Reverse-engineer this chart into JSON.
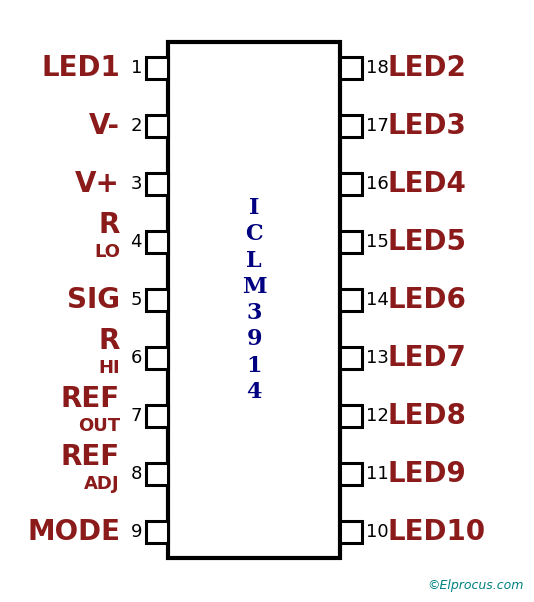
{
  "ic_label": "I\nC\nL\nM\n3\n9\n1\n4",
  "ic_color": "#ffffff",
  "ic_border_color": "#000000",
  "pin_color": "#8b1a1a",
  "num_color": "#000000",
  "bg_color": "#ffffff",
  "watermark": "©Elprocus.com",
  "watermark_color": "#008080",
  "left_pins": [
    {
      "num": "1",
      "main": "LED1",
      "sub": ""
    },
    {
      "num": "2",
      "main": "V-",
      "sub": ""
    },
    {
      "num": "3",
      "main": "V+",
      "sub": ""
    },
    {
      "num": "4",
      "main": "R",
      "sub": "LO"
    },
    {
      "num": "5",
      "main": "SIG",
      "sub": ""
    },
    {
      "num": "6",
      "main": "R",
      "sub": "HI"
    },
    {
      "num": "7",
      "main": "REF",
      "sub": "OUT"
    },
    {
      "num": "8",
      "main": "REF",
      "sub": "ADJ"
    },
    {
      "num": "9",
      "main": "MODE",
      "sub": ""
    }
  ],
  "right_pins": [
    {
      "num": "18",
      "main": "LED2",
      "sub": ""
    },
    {
      "num": "17",
      "main": "LED3",
      "sub": ""
    },
    {
      "num": "16",
      "main": "LED4",
      "sub": ""
    },
    {
      "num": "15",
      "main": "LED5",
      "sub": ""
    },
    {
      "num": "14",
      "main": "LED6",
      "sub": ""
    },
    {
      "num": "13",
      "main": "LED7",
      "sub": ""
    },
    {
      "num": "12",
      "main": "LED8",
      "sub": ""
    },
    {
      "num": "11",
      "main": "LED9",
      "sub": ""
    },
    {
      "num": "10",
      "main": "LED10",
      "sub": ""
    }
  ],
  "figsize": [
    5.34,
    6.02
  ],
  "dpi": 100
}
